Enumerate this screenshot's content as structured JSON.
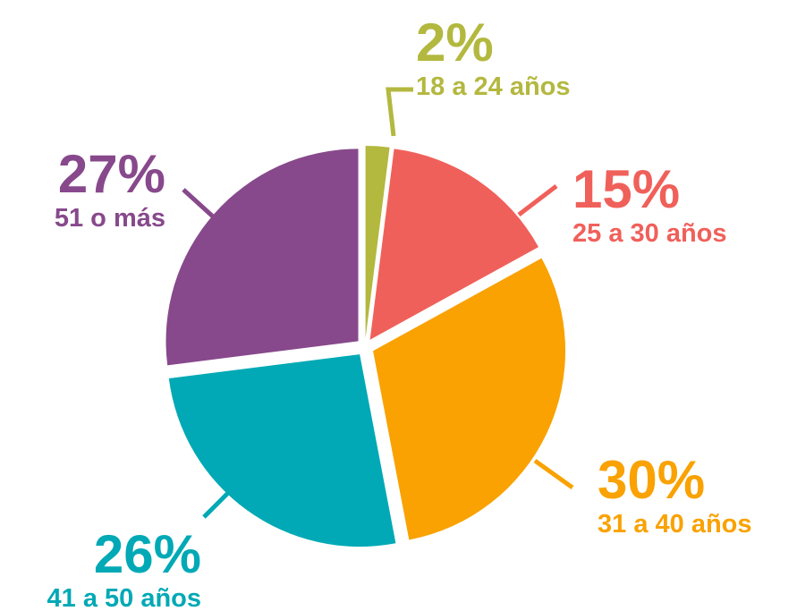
{
  "chart_data": {
    "type": "pie",
    "categories": [
      "18 a 24 años",
      "25 a 30 años",
      "31 a 40 años",
      "41 a 50 años",
      "51 o más"
    ],
    "values": [
      2,
      15,
      30,
      26,
      27
    ],
    "value_labels": [
      "2%",
      "15%",
      "30%",
      "26%",
      "27%"
    ],
    "colors": [
      "#b3b83f",
      "#f0605a",
      "#f9a202",
      "#00a9b5",
      "#87498c"
    ]
  }
}
